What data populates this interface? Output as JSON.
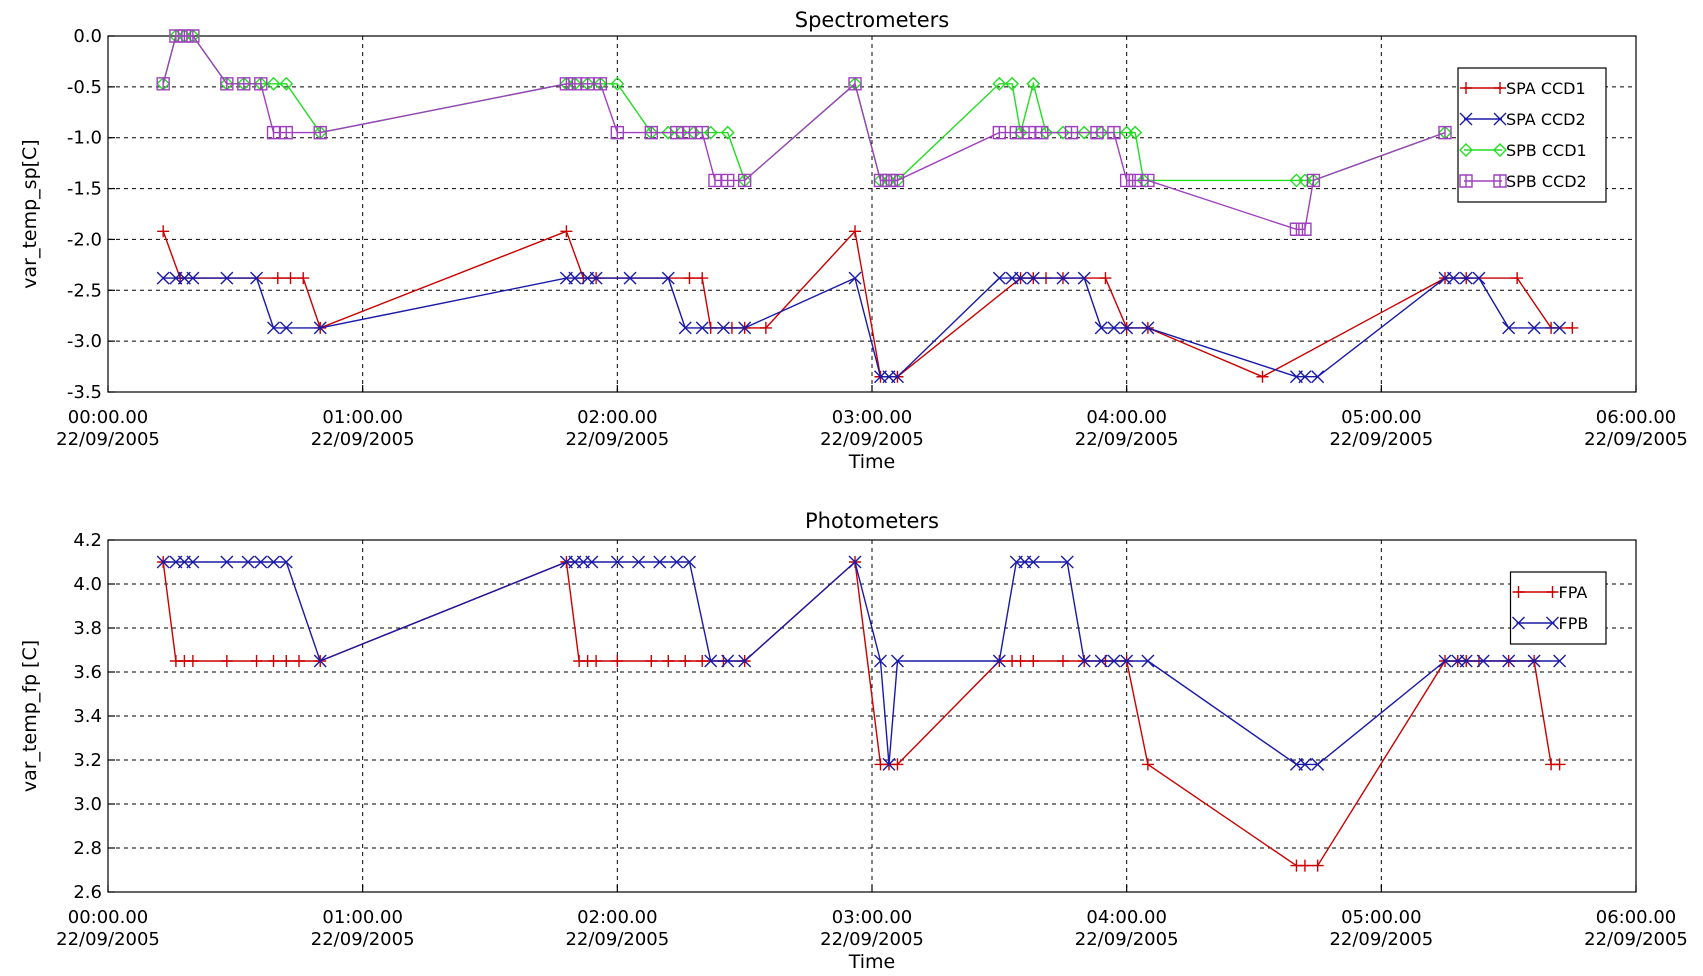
{
  "chart_data": [
    {
      "type": "line",
      "title": "Spectrometers",
      "xlabel": "Time",
      "ylabel": "var_temp_sp[C]",
      "xlim": [
        "00:00.00 22/09/2005",
        "06:00.00 22/09/2005"
      ],
      "ylim": [
        -3.5,
        0.0
      ],
      "x_ticks": [
        {
          "time": "00:00.00",
          "date": "22/09/2005"
        },
        {
          "time": "01:00.00",
          "date": "22/09/2005"
        },
        {
          "time": "02:00.00",
          "date": "22/09/2005"
        },
        {
          "time": "03:00.00",
          "date": "22/09/2005"
        },
        {
          "time": "04:00.00",
          "date": "22/09/2005"
        },
        {
          "time": "05:00.00",
          "date": "22/09/2005"
        },
        {
          "time": "06:00.00",
          "date": "22/09/2005"
        }
      ],
      "y_ticks": [
        "0.0",
        "-0.5",
        "-1.0",
        "-1.5",
        "-2.0",
        "-2.5",
        "-3.0",
        "-3.5"
      ],
      "grid": true,
      "legend_position": "top-right",
      "series": [
        {
          "name": "SPA CCD1",
          "color": "#cc0000",
          "marker": "plus",
          "x": [
            "00:13",
            "00:17",
            "00:40",
            "00:43",
            "00:46",
            "00:50",
            "01:48",
            "01:52",
            "01:55",
            "02:17",
            "02:20",
            "02:22",
            "02:27",
            "02:30",
            "02:35",
            "02:56",
            "03:02",
            "03:06",
            "03:35",
            "03:38",
            "03:41",
            "03:45",
            "03:55",
            "04:00",
            "04:05",
            "04:32",
            "05:15",
            "05:20",
            "05:32",
            "05:40",
            "05:45"
          ],
          "y": [
            -1.92,
            -2.38,
            -2.38,
            -2.38,
            -2.38,
            -2.87,
            -1.92,
            -2.38,
            -2.38,
            -2.38,
            -2.38,
            -2.87,
            -2.87,
            -2.87,
            -2.87,
            -1.92,
            -3.35,
            -3.35,
            -2.38,
            -2.38,
            -2.38,
            -2.38,
            -2.38,
            -2.87,
            -2.87,
            -3.35,
            -2.38,
            -2.38,
            -2.38,
            -2.87,
            -2.87
          ]
        },
        {
          "name": "SPA CCD2",
          "color": "#1a1aa8",
          "marker": "x",
          "x": [
            "00:13",
            "00:16",
            "00:18",
            "00:20",
            "00:28",
            "00:35",
            "00:39",
            "00:42",
            "00:50",
            "01:48",
            "01:50",
            "01:53",
            "01:55",
            "02:03",
            "02:12",
            "02:16",
            "02:20",
            "02:25",
            "02:30",
            "02:56",
            "03:02",
            "03:04",
            "03:06",
            "03:30",
            "03:33",
            "03:35",
            "03:38",
            "03:45",
            "03:50",
            "03:54",
            "03:57",
            "04:00",
            "04:05",
            "04:40",
            "04:42",
            "04:45",
            "05:15",
            "05:17",
            "05:20",
            "05:23",
            "05:30",
            "05:36",
            "05:42"
          ],
          "y": [
            -2.38,
            -2.38,
            -2.38,
            -2.38,
            -2.38,
            -2.38,
            -2.87,
            -2.87,
            -2.87,
            -2.38,
            -2.38,
            -2.38,
            -2.38,
            -2.38,
            -2.38,
            -2.87,
            -2.87,
            -2.87,
            -2.87,
            -2.38,
            -3.35,
            -3.35,
            -3.35,
            -2.38,
            -2.38,
            -2.38,
            -2.38,
            -2.38,
            -2.38,
            -2.87,
            -2.87,
            -2.87,
            -2.87,
            -3.35,
            -3.35,
            -3.35,
            -2.38,
            -2.38,
            -2.38,
            -2.38,
            -2.87,
            -2.87,
            -2.87
          ]
        },
        {
          "name": "SPB CCD1",
          "color": "#22dd22",
          "marker": "diamond",
          "x": [
            "00:13",
            "00:16",
            "00:18",
            "00:20",
            "00:28",
            "00:32",
            "00:36",
            "00:39",
            "00:42",
            "00:50",
            "01:48",
            "01:50",
            "01:53",
            "01:56",
            "02:00",
            "02:08",
            "02:12",
            "02:15",
            "02:18",
            "02:22",
            "02:26",
            "02:30",
            "02:56",
            "03:02",
            "03:04",
            "03:06",
            "03:30",
            "03:33",
            "03:35",
            "03:38",
            "03:41",
            "03:45",
            "03:50",
            "03:54",
            "04:00",
            "04:02",
            "04:04",
            "04:40",
            "04:42",
            "04:44",
            "05:15"
          ],
          "y": [
            -0.47,
            0.0,
            0.0,
            0.0,
            -0.47,
            -0.47,
            -0.47,
            -0.47,
            -0.47,
            -0.95,
            -0.47,
            -0.47,
            -0.47,
            -0.47,
            -0.47,
            -0.95,
            -0.95,
            -0.95,
            -0.95,
            -0.95,
            -0.95,
            -1.42,
            -0.47,
            -1.42,
            -1.42,
            -1.42,
            -0.47,
            -0.47,
            -0.95,
            -0.47,
            -0.95,
            -0.95,
            -0.95,
            -0.95,
            -0.95,
            -0.95,
            -1.42,
            -1.42,
            -1.42,
            -1.42,
            -0.95
          ]
        },
        {
          "name": "SPB CCD2",
          "color": "#a040c0",
          "marker": "square",
          "x": [
            "00:13",
            "00:16",
            "00:18",
            "00:20",
            "00:28",
            "00:32",
            "00:36",
            "00:39",
            "00:42",
            "00:50",
            "01:48",
            "01:50",
            "01:53",
            "01:56",
            "02:00",
            "02:08",
            "02:14",
            "02:17",
            "02:20",
            "02:23",
            "02:26",
            "02:30",
            "02:56",
            "03:02",
            "03:04",
            "03:06",
            "03:30",
            "03:34",
            "03:37",
            "03:40",
            "03:47",
            "03:53",
            "03:57",
            "04:00",
            "04:02",
            "04:05",
            "04:40",
            "04:42",
            "04:44",
            "05:15"
          ],
          "y": [
            -0.47,
            0.0,
            0.0,
            0.0,
            -0.47,
            -0.47,
            -0.47,
            -0.95,
            -0.95,
            -0.95,
            -0.47,
            -0.47,
            -0.47,
            -0.47,
            -0.95,
            -0.95,
            -0.95,
            -0.95,
            -0.95,
            -1.42,
            -1.42,
            -1.42,
            -0.47,
            -1.42,
            -1.42,
            -1.42,
            -0.95,
            -0.95,
            -0.95,
            -0.95,
            -0.95,
            -0.95,
            -0.95,
            -1.42,
            -1.42,
            -1.42,
            -1.9,
            -1.9,
            -1.42,
            -0.95
          ]
        }
      ]
    },
    {
      "type": "line",
      "title": "Photometers",
      "xlabel": "Time",
      "ylabel": "var_temp_fp [C]",
      "xlim": [
        "00:00.00 22/09/2005",
        "06:00.00 22/09/2005"
      ],
      "ylim": [
        2.6,
        4.2
      ],
      "x_ticks": [
        {
          "time": "00:00.00",
          "date": "22/09/2005"
        },
        {
          "time": "01:00.00",
          "date": "22/09/2005"
        },
        {
          "time": "02:00.00",
          "date": "22/09/2005"
        },
        {
          "time": "03:00.00",
          "date": "22/09/2005"
        },
        {
          "time": "04:00.00",
          "date": "22/09/2005"
        },
        {
          "time": "05:00.00",
          "date": "22/09/2005"
        },
        {
          "time": "06:00.00",
          "date": "22/09/2005"
        }
      ],
      "y_ticks": [
        "4.2",
        "4.0",
        "3.8",
        "3.6",
        "3.4",
        "3.2",
        "3.0",
        "2.8",
        "2.6"
      ],
      "grid": true,
      "legend_position": "top-right",
      "series": [
        {
          "name": "FPA",
          "color": "#cc0000",
          "marker": "plus",
          "x": [
            "00:13",
            "00:16",
            "00:18",
            "00:20",
            "00:28",
            "00:35",
            "00:39",
            "00:42",
            "00:45",
            "00:50",
            "01:48",
            "01:51",
            "01:53",
            "01:55",
            "02:00",
            "02:08",
            "02:12",
            "02:16",
            "02:20",
            "02:25",
            "02:30",
            "02:56",
            "03:02",
            "03:04",
            "03:06",
            "03:30",
            "03:33",
            "03:35",
            "03:38",
            "03:45",
            "03:50",
            "03:55",
            "04:00",
            "04:05",
            "04:40",
            "04:42",
            "04:45",
            "05:15",
            "05:18",
            "05:20",
            "05:23",
            "05:30",
            "05:36",
            "05:40",
            "05:42"
          ],
          "y": [
            4.1,
            3.65,
            3.65,
            3.65,
            3.65,
            3.65,
            3.65,
            3.65,
            3.65,
            3.65,
            4.1,
            3.65,
            3.65,
            3.65,
            3.65,
            3.65,
            3.65,
            3.65,
            3.65,
            3.65,
            3.65,
            4.1,
            3.18,
            3.18,
            3.18,
            3.65,
            3.65,
            3.65,
            3.65,
            3.65,
            3.65,
            3.65,
            3.65,
            3.18,
            2.72,
            2.72,
            2.72,
            3.65,
            3.65,
            3.65,
            3.65,
            3.65,
            3.65,
            3.18,
            3.18
          ]
        },
        {
          "name": "FPB",
          "color": "#1a1aa8",
          "marker": "x",
          "x": [
            "00:13",
            "00:16",
            "00:18",
            "00:20",
            "00:28",
            "00:33",
            "00:36",
            "00:39",
            "00:42",
            "00:50",
            "01:48",
            "01:50",
            "01:52",
            "01:54",
            "02:00",
            "02:05",
            "02:10",
            "02:14",
            "02:17",
            "02:22",
            "02:26",
            "02:30",
            "02:56",
            "03:02",
            "03:04",
            "03:06",
            "03:30",
            "03:34",
            "03:36",
            "03:38",
            "03:46",
            "03:50",
            "03:54",
            "03:57",
            "04:00",
            "04:05",
            "04:40",
            "04:42",
            "04:45",
            "05:15",
            "05:18",
            "05:20",
            "05:24",
            "05:30",
            "05:36",
            "05:42"
          ],
          "y": [
            4.1,
            4.1,
            4.1,
            4.1,
            4.1,
            4.1,
            4.1,
            4.1,
            4.1,
            3.65,
            4.1,
            4.1,
            4.1,
            4.1,
            4.1,
            4.1,
            4.1,
            4.1,
            4.1,
            3.65,
            3.65,
            3.65,
            4.1,
            3.65,
            3.18,
            3.65,
            3.65,
            4.1,
            4.1,
            4.1,
            4.1,
            3.65,
            3.65,
            3.65,
            3.65,
            3.65,
            3.18,
            3.18,
            3.18,
            3.65,
            3.65,
            3.65,
            3.65,
            3.65,
            3.65,
            3.65
          ]
        }
      ]
    }
  ]
}
